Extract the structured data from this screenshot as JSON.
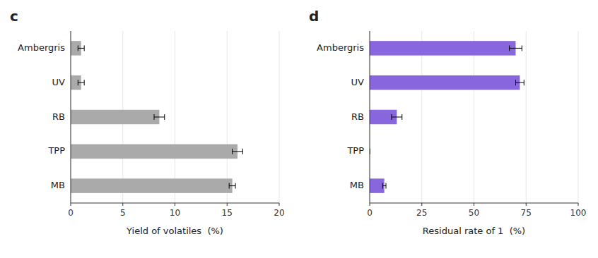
{
  "chart_data": [
    {
      "type": "bar",
      "orientation": "horizontal",
      "title": "c",
      "categories": [
        "Ambergris",
        "UV",
        "RB",
        "TPP",
        "MB"
      ],
      "values": [
        1.0,
        1.0,
        8.5,
        16.0,
        15.5
      ],
      "errors": [
        0.3,
        0.3,
        0.5,
        0.5,
        0.3
      ],
      "color": "#aaaaaa",
      "x_label": "Yield of volatiles  (%)",
      "xlim": [
        0,
        20
      ],
      "xticks": [
        0,
        5,
        10,
        15,
        20
      ]
    },
    {
      "type": "bar",
      "orientation": "horizontal",
      "title": "d",
      "categories": [
        "Ambergris",
        "UV",
        "RB",
        "TPP",
        "MB"
      ],
      "values": [
        70.0,
        72.0,
        13.0,
        0.0,
        7.0
      ],
      "errors": [
        3.0,
        2.0,
        2.5,
        0.0,
        0.8
      ],
      "color": "#8866dd",
      "x_label": "Residual rate of 1  (%)",
      "xlim": [
        0,
        100
      ],
      "xticks": [
        0,
        25,
        50,
        75,
        100
      ]
    }
  ]
}
